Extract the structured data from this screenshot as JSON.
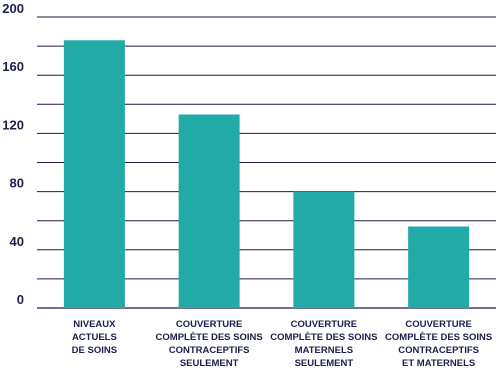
{
  "chart_data": {
    "type": "bar",
    "categories": [
      [
        "NIVEAUX",
        "ACTUELS",
        "DE SOINS"
      ],
      [
        "COUVERTURE",
        "COMPLÈTE DES SOINS",
        "CONTRACEPTIFS",
        "SEULEMENT"
      ],
      [
        "COUVERTURE",
        "COMPLÈTE DES SOINS",
        "MATERNELS",
        "SEULEMENT"
      ],
      [
        "COUVERTURE",
        "COMPLÈTE DES SOINS",
        "CONTRACEPTIFS",
        "ET MATERNELS"
      ]
    ],
    "values": [
      184,
      133,
      80,
      56
    ],
    "ylim": [
      0,
      200
    ],
    "yticks": [
      0,
      40,
      80,
      120,
      160,
      200
    ],
    "grid": true,
    "bar_color": "#22aaa6",
    "text_color": "#1c1f4b",
    "title": "",
    "xlabel": "",
    "ylabel": ""
  }
}
